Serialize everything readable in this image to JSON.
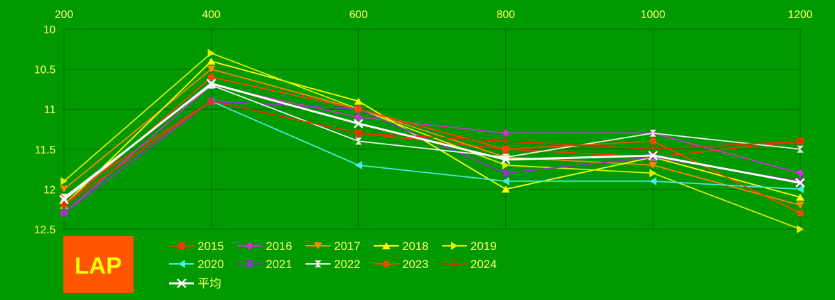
{
  "colors": {
    "background": "#009900",
    "grid": "#006600",
    "tick": "#ffff66",
    "badge": "#ff5500",
    "badge_text": "#ffff00"
  },
  "badge": {
    "label": "LAP"
  },
  "chart_data": {
    "type": "line",
    "x": [
      200,
      400,
      600,
      800,
      1000,
      1200
    ],
    "x_ticks": [
      "200",
      "400",
      "600",
      "800",
      "1000",
      "1200"
    ],
    "y_ticks": [
      "10",
      "10.5",
      "11",
      "11.5",
      "12",
      "12.5"
    ],
    "ylim": [
      10,
      12.5
    ],
    "y_reversed": true,
    "x_axis_position": "top",
    "grid": true,
    "legend_position": "bottom-left",
    "series": [
      {
        "name": "2015",
        "color": "#ff3300",
        "marker": "square",
        "values": [
          12.1,
          10.9,
          11.3,
          11.5,
          11.6,
          11.4
        ]
      },
      {
        "name": "2016",
        "color": "#cc33cc",
        "marker": "diamond",
        "values": [
          12.3,
          10.7,
          11.1,
          11.3,
          11.3,
          11.8
        ]
      },
      {
        "name": "2017",
        "color": "#ff8800",
        "marker": "triangle-down",
        "values": [
          12.0,
          10.5,
          11.0,
          11.6,
          11.7,
          12.2
        ]
      },
      {
        "name": "2018",
        "color": "#ffff00",
        "marker": "triangle-up",
        "values": [
          12.2,
          10.4,
          10.9,
          12.0,
          11.6,
          12.1
        ]
      },
      {
        "name": "2019",
        "color": "#ddee00",
        "marker": "triangle-right",
        "values": [
          11.9,
          10.3,
          11.0,
          11.7,
          11.8,
          12.5
        ]
      },
      {
        "name": "2020",
        "color": "#44eedd",
        "marker": "triangle-left",
        "values": [
          12.2,
          10.9,
          11.7,
          11.9,
          11.9,
          12.0
        ]
      },
      {
        "name": "2021",
        "color": "#9933cc",
        "marker": "star",
        "values": [
          12.3,
          10.9,
          11.0,
          11.8,
          11.6,
          11.9
        ]
      },
      {
        "name": "2022",
        "color": "#eeeeee",
        "marker": "hourglass",
        "values": [
          12.1,
          10.7,
          11.4,
          11.6,
          11.3,
          11.5
        ]
      },
      {
        "name": "2023",
        "color": "#ff4400",
        "marker": "circle",
        "values": [
          12.2,
          10.6,
          11.0,
          11.5,
          11.4,
          12.3
        ]
      },
      {
        "name": "2024",
        "color": "#dd3300",
        "marker": "plus",
        "values": [
          12.2,
          10.9,
          11.3,
          11.4,
          11.5,
          11.4
        ]
      },
      {
        "name": "平均",
        "color": "#ffffff",
        "marker": "x",
        "width": 3,
        "values": [
          12.13,
          10.68,
          11.18,
          11.63,
          11.58,
          11.92
        ]
      }
    ]
  }
}
